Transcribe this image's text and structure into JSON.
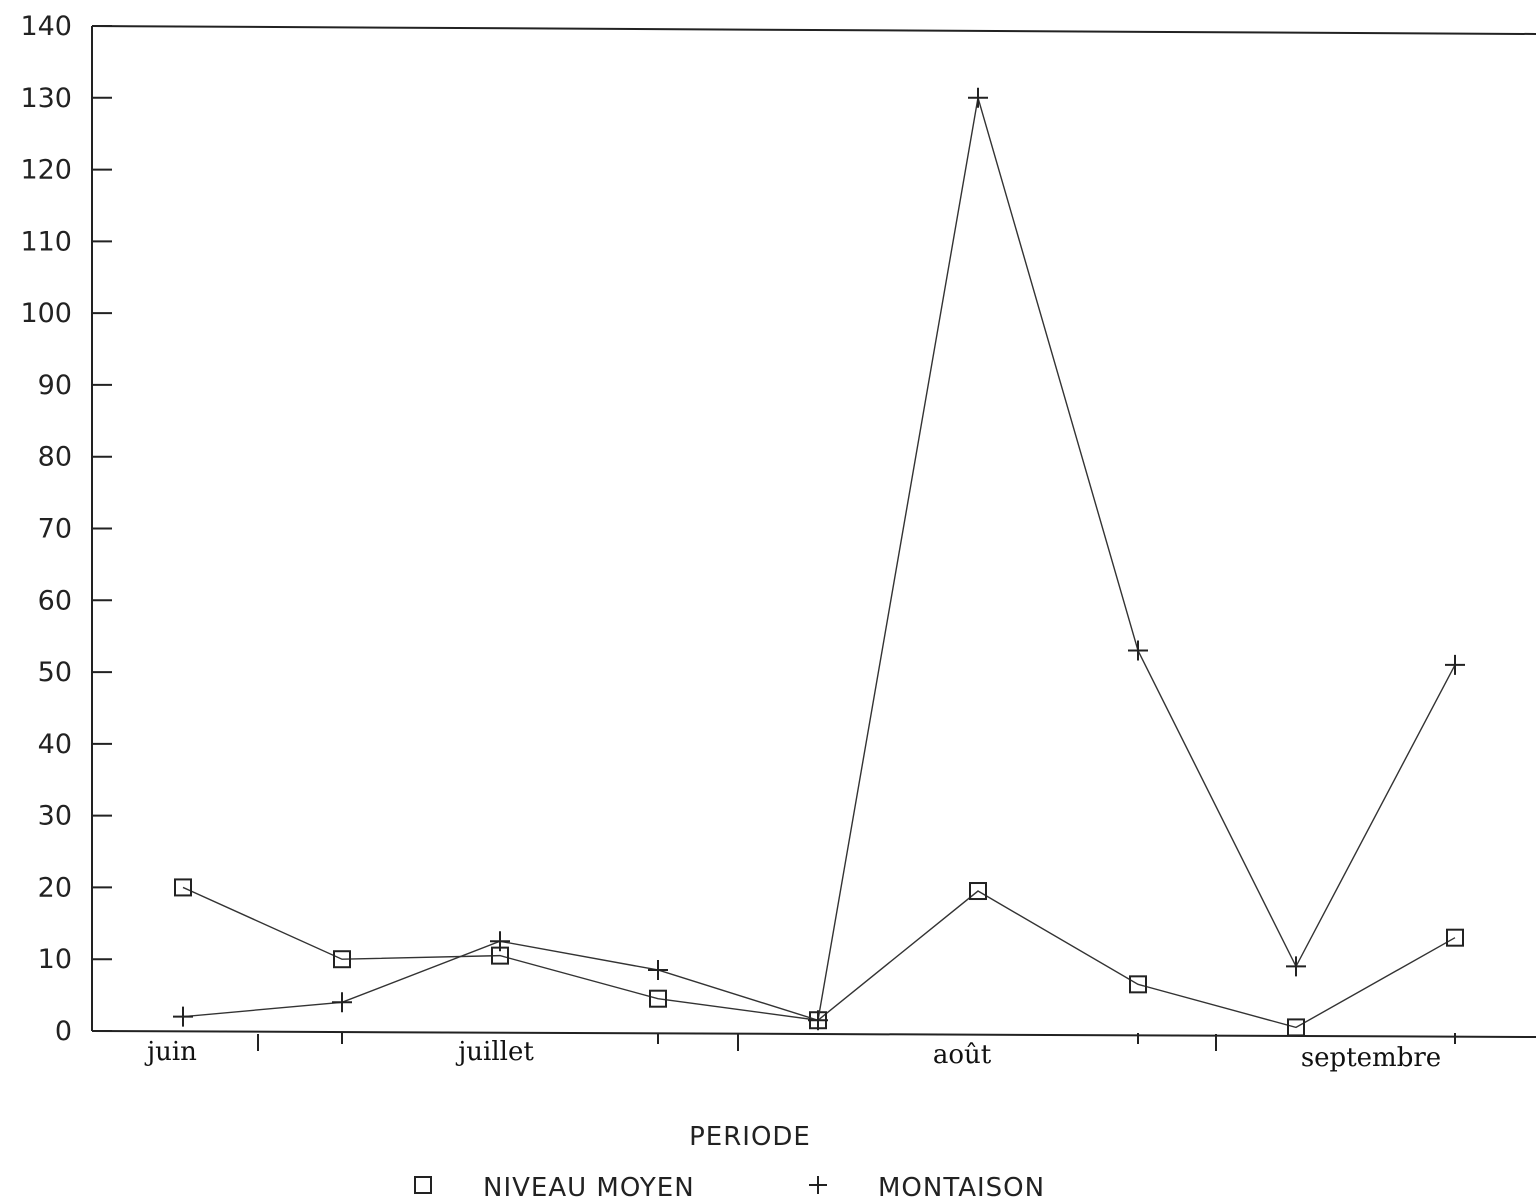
{
  "chart_data": {
    "type": "line",
    "title": "",
    "xlabel": "PERIODE",
    "ylabel": "",
    "ylim": [
      0,
      140
    ],
    "yticks": [
      0,
      10,
      20,
      30,
      40,
      50,
      60,
      70,
      80,
      90,
      100,
      110,
      120,
      130,
      140
    ],
    "ytick_labels": [
      "0",
      "10",
      "20",
      "30",
      "40",
      "50",
      "60",
      "70",
      "80",
      "90",
      "100",
      "110",
      "120",
      "130",
      "140"
    ],
    "month_labels": [
      "juin",
      "juillet",
      "août",
      "septembre"
    ],
    "x": [
      1,
      2,
      3,
      4,
      5,
      6,
      7,
      8,
      9
    ],
    "series": [
      {
        "name": "NIVEAU MOYEN",
        "marker": "square",
        "values": [
          20,
          10,
          10.5,
          4.5,
          1.5,
          19.5,
          6.5,
          0.5,
          13
        ]
      },
      {
        "name": "MONTAISON",
        "marker": "plus",
        "values": [
          2,
          4,
          12.5,
          8.5,
          1.5,
          130,
          53,
          9,
          51
        ]
      }
    ],
    "grid": false,
    "legend_position": "bottom",
    "colors": {
      "line": "#333333",
      "marker": "#222222",
      "axis": "#222222"
    }
  }
}
